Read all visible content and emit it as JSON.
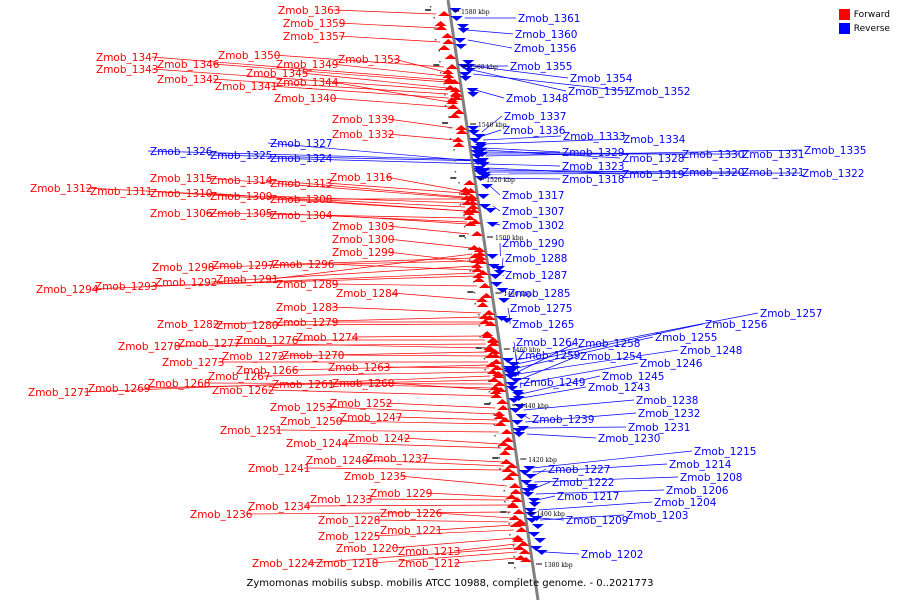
{
  "caption": "Zymomonas mobilis subsp. mobilis ATCC 10988, complete genome. - 0..2021773",
  "legend": [
    {
      "label": "Forward",
      "color": "#ff0000"
    },
    {
      "label": "Reverse",
      "color": "#0000ff"
    }
  ],
  "colors": {
    "forward": "#ff0000",
    "reverse": "#0000ff",
    "axis": "#808080"
  },
  "kbp_labels": [
    "1580 kbp",
    "1560 kbp",
    "1540 kbp",
    "1520 kbp",
    "1500 kbp",
    "1480 kbp",
    "1460 kbp",
    "1440 kbp",
    "1420 kbp",
    "1400 kbp",
    "1380 kbp"
  ],
  "forward_genes": [
    "Zmob_1363",
    "Zmob_1359",
    "Zmob_1357",
    "Zmob_1347",
    "Zmob_1350",
    "Zmob_1353",
    "Zmob_1346",
    "Zmob_1349",
    "Zmob_1343",
    "Zmob_1345",
    "Zmob_1342",
    "Zmob_1344",
    "Zmob_1341",
    "Zmob_1340",
    "Zmob_1339",
    "Zmob_1332",
    "Zmob_1316",
    "Zmob_1315",
    "Zmob_1314",
    "Zmob_1313",
    "Zmob_1312",
    "Zmob_1311",
    "Zmob_1310",
    "Zmob_1309",
    "Zmob_1308",
    "Zmob_1306",
    "Zmob_1305",
    "Zmob_1304",
    "Zmob_1303",
    "Zmob_1300",
    "Zmob_1299",
    "Zmob_1298",
    "Zmob_1297",
    "Zmob_1296",
    "Zmob_1291",
    "Zmob_1292",
    "Zmob_1294",
    "Zmob_1293",
    "Zmob_1289",
    "Zmob_1284",
    "Zmob_1283",
    "Zmob_1282",
    "Zmob_1280",
    "Zmob_1279",
    "Zmob_1276",
    "Zmob_1274",
    "Zmob_1278",
    "Zmob_1277",
    "Zmob_1272",
    "Zmob_1270",
    "Zmob_1273",
    "Zmob_1266",
    "Zmob_1263",
    "Zmob_1267",
    "Zmob_1271",
    "Zmob_1269",
    "Zmob_1268",
    "Zmob_1261",
    "Zmob_1260",
    "Zmob_1262",
    "Zmob_1252",
    "Zmob_1253",
    "Zmob_1247",
    "Zmob_1250",
    "Zmob_1251",
    "Zmob_1242",
    "Zmob_1244",
    "Zmob_1237",
    "Zmob_1240",
    "Zmob_1241",
    "Zmob_1235",
    "Zmob_1229",
    "Zmob_1233",
    "Zmob_1234",
    "Zmob_1236",
    "Zmob_1226",
    "Zmob_1228",
    "Zmob_1221",
    "Zmob_1225",
    "Zmob_1220",
    "Zmob_1213",
    "Zmob_1224",
    "Zmob_1218",
    "Zmob_1212"
  ],
  "reverse_genes": [
    "Zmob_1361",
    "Zmob_1360",
    "Zmob_1356",
    "Zmob_1355",
    "Zmob_1354",
    "Zmob_1351",
    "Zmob_1352",
    "Zmob_1348",
    "Zmob_1337",
    "Zmob_1336",
    "Zmob_1333",
    "Zmob_1334",
    "Zmob_1327",
    "Zmob_1326",
    "Zmob_1325",
    "Zmob_1324",
    "Zmob_1329",
    "Zmob_1328",
    "Zmob_1330",
    "Zmob_1331",
    "Zmob_1335",
    "Zmob_1323",
    "Zmob_1319",
    "Zmob_1320",
    "Zmob_1321",
    "Zmob_1322",
    "Zmob_1318",
    "Zmob_1317",
    "Zmob_1307",
    "Zmob_1302",
    "Zmob_1290",
    "Zmob_1288",
    "Zmob_1287",
    "Zmob_1285",
    "Zmob_1275",
    "Zmob_1265",
    "Zmob_1257",
    "Zmob_1256",
    "Zmob_1255",
    "Zmob_1264",
    "Zmob_1258",
    "Zmob_1248",
    "Zmob_1259",
    "Zmob_1254",
    "Zmob_1246",
    "Zmob_1245",
    "Zmob_1249",
    "Zmob_1243",
    "Zmob_1238",
    "Zmob_1239",
    "Zmob_1232",
    "Zmob_1231",
    "Zmob_1230",
    "Zmob_1215",
    "Zmob_1214",
    "Zmob_1227",
    "Zmob_1208",
    "Zmob_1222",
    "Zmob_1206",
    "Zmob_1217",
    "Zmob_1204",
    "Zmob_1209",
    "Zmob_1203",
    "Zmob_1202"
  ]
}
